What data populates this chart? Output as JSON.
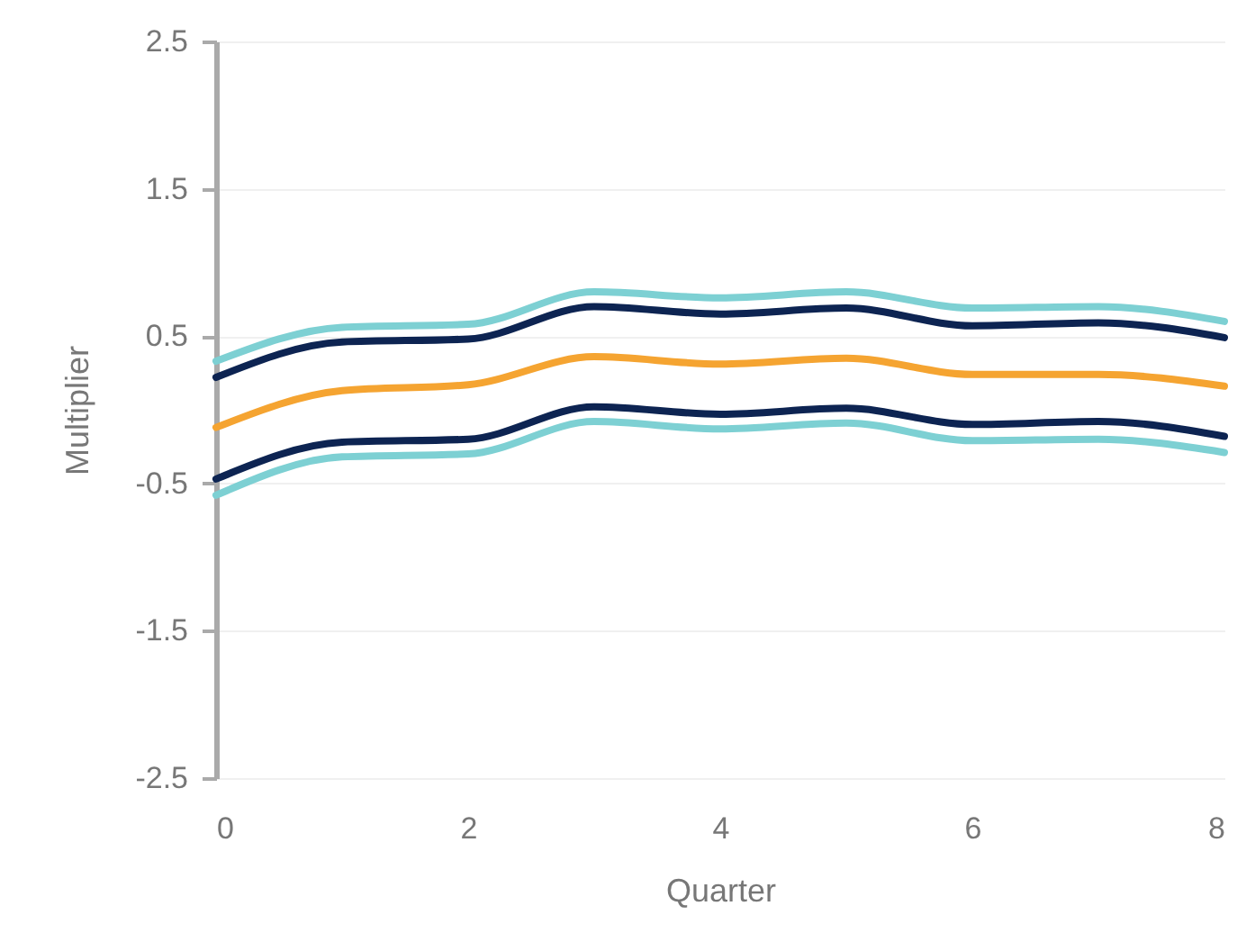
{
  "chart_data": {
    "type": "line",
    "xlabel": "Quarter",
    "ylabel": "Multiplier",
    "x": [
      0,
      1,
      2,
      3,
      4,
      5,
      6,
      7,
      8
    ],
    "series": [
      {
        "color": "#7dd0d3",
        "values": [
          0.33,
          0.56,
          0.58,
          0.8,
          0.76,
          0.8,
          0.69,
          0.7,
          0.6
        ]
      },
      {
        "color": "#0d2452",
        "values": [
          0.22,
          0.46,
          0.48,
          0.7,
          0.65,
          0.69,
          0.57,
          0.59,
          0.49
        ]
      },
      {
        "color": "#f5a431",
        "values": [
          -0.12,
          0.13,
          0.17,
          0.36,
          0.31,
          0.35,
          0.24,
          0.24,
          0.16
        ]
      },
      {
        "color": "#0d2452",
        "values": [
          -0.47,
          -0.22,
          -0.2,
          0.02,
          -0.03,
          0.01,
          -0.1,
          -0.08,
          -0.18
        ]
      },
      {
        "color": "#7dd0d3",
        "values": [
          -0.58,
          -0.32,
          -0.3,
          -0.08,
          -0.13,
          -0.09,
          -0.21,
          -0.2,
          -0.29
        ]
      }
    ],
    "xlim": [
      0,
      8
    ],
    "xticks": [
      0,
      2,
      4,
      6,
      8
    ],
    "ylim": [
      -2.5,
      2.5
    ],
    "yticks": [
      -2.5,
      -1.5,
      -0.5,
      0.5,
      1.5,
      2.5
    ],
    "grid": "y",
    "marker": "none",
    "line_style": "solid"
  }
}
